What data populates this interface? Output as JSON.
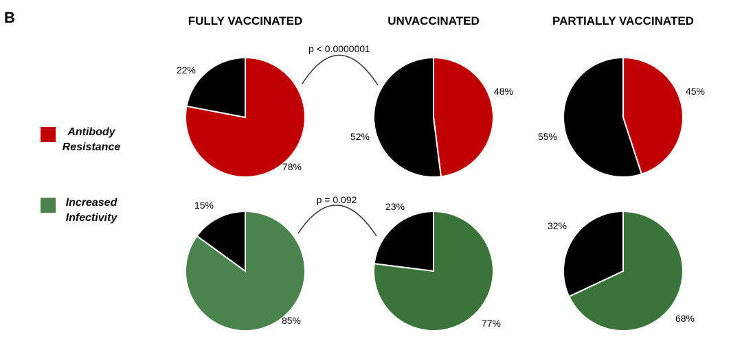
{
  "panel_label": "B",
  "colors": {
    "antibody_resistance": "#c00000",
    "increased_infectivity_fully": "#4a844c",
    "increased_infectivity": "#3a743a",
    "other": "#000000"
  },
  "legend": [
    {
      "label_line1": "Antibody",
      "label_line2": "Resistance",
      "color": "#c00000"
    },
    {
      "label_line1": "Increased",
      "label_line2": "Infectivity",
      "color": "#4a844c"
    }
  ],
  "columns": [
    "FULLY VACCINATED",
    "UNVACCINATED",
    "PARTIALLY VACCINATED"
  ],
  "comparisons": [
    {
      "label": "p < 0.0000001"
    },
    {
      "label": "p = 0.092"
    }
  ],
  "chart_data": {
    "type": "pie",
    "charts": [
      {
        "row": "Antibody Resistance",
        "column": "FULLY VACCINATED",
        "slices": [
          {
            "value": 78,
            "label": "78%",
            "color": "#c00000"
          },
          {
            "value": 22,
            "label": "22%",
            "color": "#000000"
          }
        ]
      },
      {
        "row": "Antibody Resistance",
        "column": "UNVACCINATED",
        "slices": [
          {
            "value": 48,
            "label": "48%",
            "color": "#c00000"
          },
          {
            "value": 52,
            "label": "52%",
            "color": "#000000"
          }
        ]
      },
      {
        "row": "Antibody Resistance",
        "column": "PARTIALLY VACCINATED",
        "slices": [
          {
            "value": 45,
            "label": "45%",
            "color": "#c00000"
          },
          {
            "value": 55,
            "label": "55%",
            "color": "#000000"
          }
        ]
      },
      {
        "row": "Increased Infectivity",
        "column": "FULLY VACCINATED",
        "slices": [
          {
            "value": 85,
            "label": "85%",
            "color": "#4a844c"
          },
          {
            "value": 15,
            "label": "15%",
            "color": "#000000"
          }
        ]
      },
      {
        "row": "Increased Infectivity",
        "column": "UNVACCINATED",
        "slices": [
          {
            "value": 77,
            "label": "77%",
            "color": "#3a743a"
          },
          {
            "value": 23,
            "label": "23%",
            "color": "#000000"
          }
        ]
      },
      {
        "row": "Increased Infectivity",
        "column": "PARTIALLY VACCINATED",
        "slices": [
          {
            "value": 68,
            "label": "68%",
            "color": "#3a743a"
          },
          {
            "value": 32,
            "label": "32%",
            "color": "#000000"
          }
        ]
      }
    ]
  }
}
